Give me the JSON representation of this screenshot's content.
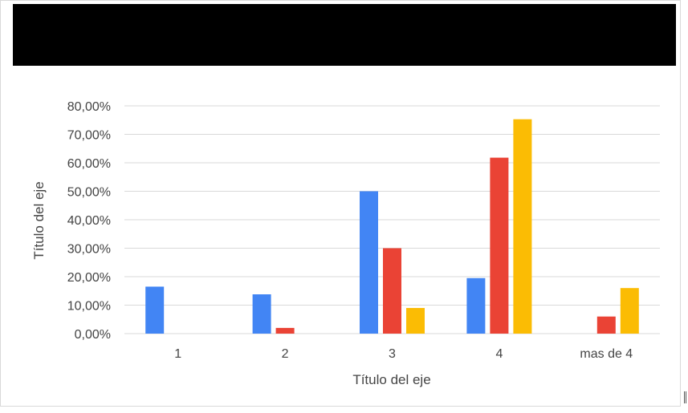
{
  "chart_data": {
    "type": "bar",
    "title": "",
    "xlabel": "Título del eje",
    "ylabel": "Título del eje",
    "categories": [
      "1",
      "2",
      "3",
      "4",
      "mas de 4"
    ],
    "series": [
      {
        "color": "#4285f4",
        "values": [
          16.5,
          13.8,
          50.0,
          19.5,
          0.0
        ]
      },
      {
        "color": "#ea4335",
        "values": [
          0.0,
          2.0,
          30.0,
          61.8,
          6.0
        ]
      },
      {
        "color": "#fbbc04",
        "values": [
          0.0,
          0.0,
          9.0,
          75.3,
          16.0
        ]
      }
    ],
    "yticks": [
      "0,00%",
      "10,00%",
      "20,00%",
      "30,00%",
      "40,00%",
      "50,00%",
      "60,00%",
      "70,00%",
      "80,00%"
    ],
    "ylim": [
      0,
      80
    ],
    "grid": true,
    "legend": "none"
  },
  "colors": {
    "title_bar": "#000000",
    "gridline": "#d9d9d9",
    "text": "#444444"
  }
}
